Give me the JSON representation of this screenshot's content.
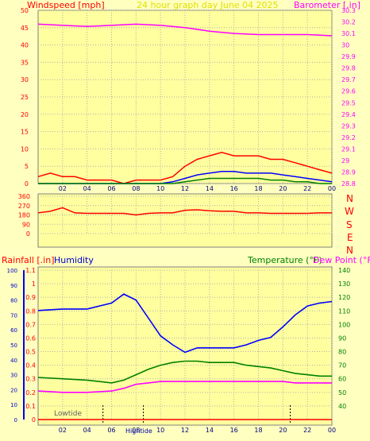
{
  "header": {
    "left": "Windspeed [mph]",
    "center": "24 hour graph day   June 04 2025",
    "right": "Barometer [.in]"
  },
  "chart_data": [
    {
      "type": "line",
      "name": "wind-baro",
      "x_ticks": [
        "02",
        "04",
        "06",
        "08",
        "10",
        "12",
        "14",
        "16",
        "18",
        "20",
        "22",
        "00"
      ],
      "left_axis": {
        "label": "Windspeed [mph]",
        "ylim": [
          0,
          50
        ],
        "ticks": [
          0,
          5,
          10,
          15,
          20,
          25,
          30,
          35,
          40,
          45,
          50
        ]
      },
      "right_axis": {
        "label": "Barometer [.in]",
        "ylim": [
          28.8,
          30.3
        ],
        "ticks": [
          "28.8",
          "28.9",
          "29",
          "29.1",
          "29.2",
          "29.3",
          "29.4",
          "29.5",
          "29.6",
          "29.7",
          "29.8",
          "29.9",
          "30",
          "30.1",
          "30.2",
          "30.3"
        ]
      },
      "series": [
        {
          "key": "barometer",
          "axis": "right",
          "color": "#ff00ff",
          "x": [
            0,
            2,
            4,
            6,
            8,
            10,
            12,
            14,
            16,
            18,
            20,
            22,
            24
          ],
          "y": [
            30.18,
            30.17,
            30.16,
            30.17,
            30.18,
            30.17,
            30.15,
            30.12,
            30.1,
            30.09,
            30.09,
            30.09,
            30.08
          ]
        },
        {
          "key": "gust",
          "axis": "left",
          "color": "#ff0000",
          "x": [
            0,
            1,
            2,
            3,
            4,
            5,
            6,
            7,
            8,
            9,
            10,
            11,
            12,
            13,
            14,
            15,
            16,
            17,
            18,
            19,
            20,
            21,
            22,
            23,
            24
          ],
          "y": [
            2,
            3,
            2,
            2,
            1,
            1,
            1,
            0,
            1,
            1,
            1,
            2,
            5,
            7,
            8,
            9,
            8,
            8,
            8,
            7,
            7,
            6,
            5,
            4,
            3
          ]
        },
        {
          "key": "average",
          "axis": "left",
          "color": "#0000ff",
          "x": [
            0,
            2,
            4,
            6,
            8,
            10,
            11,
            12,
            13,
            14,
            15,
            16,
            17,
            18,
            19,
            20,
            21,
            22,
            23,
            24
          ],
          "y": [
            0,
            0,
            0,
            0,
            0,
            0,
            0.5,
            1.5,
            2.5,
            3,
            3.5,
            3.5,
            3,
            3,
            3,
            2.5,
            2,
            1.5,
            1,
            0.5
          ]
        },
        {
          "key": "low",
          "axis": "left",
          "color": "#008000",
          "x": [
            0,
            10,
            11,
            12,
            13,
            14,
            15,
            16,
            17,
            18,
            19,
            20,
            21,
            22,
            23,
            24
          ],
          "y": [
            0,
            0,
            0,
            0.5,
            1,
            1.5,
            1.5,
            1.5,
            1.5,
            1.5,
            1,
            1,
            0.5,
            0.5,
            0,
            0
          ]
        }
      ]
    },
    {
      "type": "line",
      "name": "wind-direction",
      "x_ticks": [
        "02",
        "04",
        "06",
        "08",
        "10",
        "12",
        "14",
        "16",
        "18",
        "20",
        "22",
        "00"
      ],
      "left_axis": {
        "ylim": [
          0,
          360
        ],
        "ticks": [
          0,
          90,
          180,
          270,
          360
        ]
      },
      "right_labels": [
        "N",
        "W",
        "S",
        "E",
        "N"
      ],
      "series": [
        {
          "key": "direction",
          "color": "#ff0000",
          "x": [
            0,
            1,
            2,
            3,
            4,
            5,
            6,
            7,
            8,
            9,
            10,
            11,
            12,
            13,
            14,
            15,
            16,
            17,
            18,
            19,
            20,
            21,
            22,
            23,
            24
          ],
          "y": [
            200,
            215,
            250,
            200,
            195,
            195,
            195,
            195,
            180,
            195,
            200,
            200,
            225,
            230,
            220,
            215,
            215,
            200,
            200,
            195,
            195,
            195,
            195,
            200,
            200
          ]
        }
      ]
    },
    {
      "type": "line",
      "name": "rain-humidity-temp",
      "labels": {
        "rain": "Rainfall [.in]",
        "humidity": "Humidity",
        "temp": "Temperature (°F)",
        "dew": "Dew Point (°F)"
      },
      "x_ticks": [
        "02",
        "04",
        "06",
        "08",
        "10",
        "12",
        "14",
        "16",
        "18",
        "20",
        "22",
        "00"
      ],
      "rain_axis": {
        "ylim": [
          0,
          1.1
        ],
        "ticks": [
          "0",
          "0.1",
          "0.2",
          "0.3",
          "0.4",
          "0.5",
          "0.6",
          "0.7",
          "0.8",
          "0.9",
          "1",
          "1.1"
        ]
      },
      "humidity_axis": {
        "ylim": [
          0,
          100
        ],
        "ticks": [
          0,
          10,
          20,
          30,
          40,
          50,
          60,
          70,
          80,
          90,
          100
        ]
      },
      "temp_axis": {
        "ylim": [
          30,
          140
        ],
        "ticks": [
          40,
          50,
          60,
          70,
          80,
          90,
          100,
          110,
          120,
          130,
          140
        ]
      },
      "tides": [
        {
          "label": "Lowtide",
          "x": 5.3
        },
        {
          "label": "Hightide",
          "x": 8.6
        },
        {
          "label": "",
          "x": 20.6
        }
      ],
      "series": [
        {
          "key": "humidity",
          "axis": "humidity",
          "color": "#0000ff",
          "x": [
            0,
            2,
            4,
            6,
            7,
            8,
            9,
            10,
            11,
            12,
            13,
            14,
            15,
            16,
            17,
            18,
            19,
            20,
            21,
            22,
            23,
            24
          ],
          "y": [
            73,
            74,
            74,
            78,
            84,
            80,
            68,
            56,
            50,
            45,
            48,
            48,
            48,
            48,
            50,
            53,
            55,
            62,
            70,
            76,
            78,
            79
          ]
        },
        {
          "key": "temperature",
          "axis": "temp",
          "color": "#008000",
          "x": [
            0,
            2,
            4,
            6,
            7,
            8,
            9,
            10,
            11,
            12,
            13,
            14,
            15,
            16,
            17,
            18,
            19,
            20,
            21,
            22,
            23,
            24
          ],
          "y": [
            61,
            60,
            59,
            57,
            59,
            63,
            67,
            70,
            72,
            73,
            73,
            72,
            72,
            72,
            70,
            69,
            68,
            66,
            64,
            63,
            62,
            62
          ]
        },
        {
          "key": "dew_point",
          "axis": "temp",
          "color": "#ff00ff",
          "x": [
            0,
            2,
            4,
            6,
            7,
            8,
            9,
            10,
            11,
            12,
            13,
            14,
            15,
            16,
            17,
            18,
            19,
            20,
            21,
            22,
            23,
            24
          ],
          "y": [
            51,
            50,
            50,
            51,
            53,
            56,
            57,
            58,
            58,
            58,
            58,
            58,
            58,
            58,
            58,
            58,
            58,
            58,
            57,
            57,
            57,
            57
          ]
        },
        {
          "key": "rainfall",
          "axis": "rain",
          "color": "#ff0000",
          "x": [
            0,
            24
          ],
          "y": [
            0,
            0
          ]
        }
      ]
    }
  ]
}
